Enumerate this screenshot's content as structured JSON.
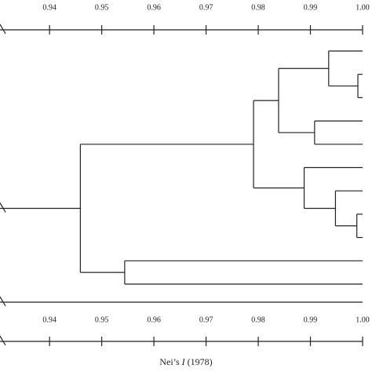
{
  "chart_data": {
    "type": "dendrogram",
    "xlim": [
      0.9305,
      1.0
    ],
    "xticks": [
      0.94,
      0.95,
      0.96,
      0.97,
      0.98,
      0.99,
      {
        "value": 1.0,
        "label": "1.00"
      }
    ],
    "xlabel": {
      "before": "Nei’s ",
      "italic": "I",
      "after": " (1978)"
    },
    "tree": {
      "height": 0.9459,
      "children": [
        {
          "height": 0.9791,
          "children": [
            {
              "height": 0.9839,
              "children": [
                {
                  "height": 0.9935,
                  "children": [
                    1,
                    {
                      "height": 0.9991,
                      "children": [
                        1,
                        1
                      ]
                    }
                  ]
                },
                {
                  "height": 0.9908,
                  "children": [
                    1,
                    1
                  ]
                }
              ]
            },
            {
              "height": 0.9888,
              "children": [
                1,
                {
                  "height": 0.9948,
                  "children": [
                    1,
                    {
                      "height": 0.9989,
                      "children": [
                        1,
                        1
                      ]
                    }
                  ]
                }
              ]
            }
          ]
        },
        {
          "height": 0.9544,
          "children": [
            1,
            1
          ]
        }
      ]
    }
  }
}
